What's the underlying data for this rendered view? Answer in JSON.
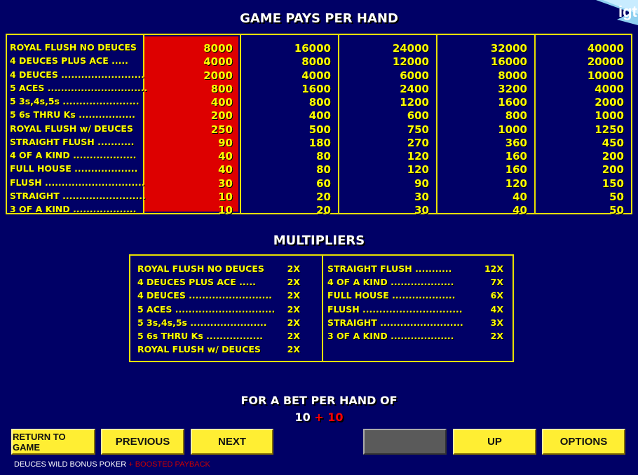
{
  "logo": "igt",
  "pays_title": "GAME PAYS PER HAND",
  "paytable": [
    {
      "hand": "ROYAL FLUSH NO DEUCES",
      "pays": [
        "8000",
        "16000",
        "24000",
        "32000",
        "40000"
      ]
    },
    {
      "hand": "4 DEUCES PLUS ACE .....",
      "pays": [
        "4000",
        "8000",
        "12000",
        "16000",
        "20000"
      ]
    },
    {
      "hand": "4 DEUCES .........................",
      "pays": [
        "2000",
        "4000",
        "6000",
        "8000",
        "10000"
      ]
    },
    {
      "hand": "5 ACES ..............................",
      "pays": [
        "800",
        "1600",
        "2400",
        "3200",
        "4000"
      ]
    },
    {
      "hand": "5 3s,4s,5s .......................",
      "pays": [
        "400",
        "800",
        "1200",
        "1600",
        "2000"
      ]
    },
    {
      "hand": "5 6s THRU Ks .................",
      "pays": [
        "200",
        "400",
        "600",
        "800",
        "1000"
      ]
    },
    {
      "hand": "ROYAL FLUSH w/ DEUCES",
      "pays": [
        "250",
        "500",
        "750",
        "1000",
        "1250"
      ]
    },
    {
      "hand": "STRAIGHT FLUSH ...........",
      "pays": [
        "90",
        "180",
        "270",
        "360",
        "450"
      ]
    },
    {
      "hand": "4 OF A KIND ...................",
      "pays": [
        "40",
        "80",
        "120",
        "160",
        "200"
      ]
    },
    {
      "hand": "FULL HOUSE ...................",
      "pays": [
        "40",
        "80",
        "120",
        "160",
        "200"
      ]
    },
    {
      "hand": "FLUSH ..............................",
      "pays": [
        "30",
        "60",
        "90",
        "120",
        "150"
      ]
    },
    {
      "hand": "STRAIGHT .........................",
      "pays": [
        "10",
        "20",
        "30",
        "40",
        "50"
      ]
    },
    {
      "hand": "3 OF A KIND ...................",
      "pays": [
        "10",
        "20",
        "30",
        "40",
        "50"
      ]
    }
  ],
  "highlight_color": "#dd0000",
  "mult_title": "MULTIPLIERS",
  "multipliers_left": [
    {
      "hand": "ROYAL FLUSH NO DEUCES",
      "mult": "2X"
    },
    {
      "hand": "4 DEUCES PLUS ACE .....",
      "mult": "2X"
    },
    {
      "hand": "4 DEUCES .........................",
      "mult": "2X"
    },
    {
      "hand": "5 ACES ..............................",
      "mult": "2X"
    },
    {
      "hand": "5 3s,4s,5s .......................",
      "mult": "2X"
    },
    {
      "hand": "5 6s THRU Ks .................",
      "mult": "2X"
    },
    {
      "hand": "ROYAL FLUSH w/ DEUCES",
      "mult": "2X"
    }
  ],
  "multipliers_right": [
    {
      "hand": "STRAIGHT FLUSH ...........",
      "mult": "12X"
    },
    {
      "hand": "4 OF A KIND ...................",
      "mult": "7X"
    },
    {
      "hand": "FULL HOUSE ...................",
      "mult": "6X"
    },
    {
      "hand": "FLUSH ..............................",
      "mult": "4X"
    },
    {
      "hand": "STRAIGHT .........................",
      "mult": "3X"
    },
    {
      "hand": "3 OF A KIND ...................",
      "mult": "2X"
    }
  ],
  "bet": {
    "label": "FOR A BET PER HAND OF",
    "base": "10",
    "plus": "+",
    "bonus": "10"
  },
  "buttons": {
    "return": "RETURN TO GAME",
    "previous": "PREVIOUS",
    "next": "NEXT",
    "blank": "",
    "up": "UP",
    "options": "OPTIONS"
  },
  "footer": {
    "game": "DEUCES WILD BONUS POKER",
    "plus": "+",
    "boost": "BOOSTED PAYBACK"
  }
}
